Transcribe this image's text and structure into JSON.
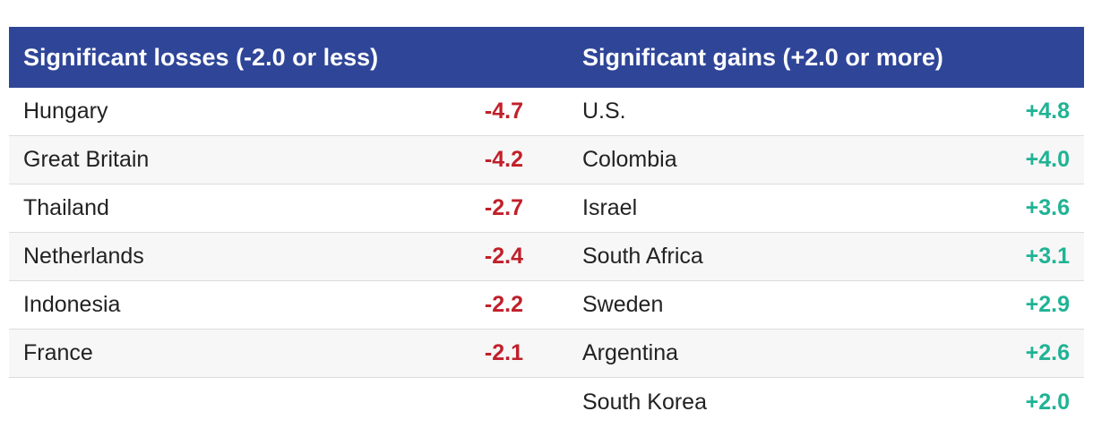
{
  "chart_data": {
    "type": "table",
    "columns": [
      "Significant losses (-2.0 or less)",
      "Significant gains (+2.0 or more)"
    ],
    "losses": [
      {
        "country": "Hungary",
        "value": "-4.7"
      },
      {
        "country": "Great Britain",
        "value": "-4.2"
      },
      {
        "country": "Thailand",
        "value": "-2.7"
      },
      {
        "country": "Netherlands",
        "value": "-2.4"
      },
      {
        "country": "Indonesia",
        "value": "-2.2"
      },
      {
        "country": "France",
        "value": "-2.1"
      }
    ],
    "gains": [
      {
        "country": "U.S.",
        "value": "+4.8"
      },
      {
        "country": "Colombia",
        "value": "+4.0"
      },
      {
        "country": "Israel",
        "value": "+3.6"
      },
      {
        "country": "South Africa",
        "value": "+3.1"
      },
      {
        "country": "Sweden",
        "value": "+2.9"
      },
      {
        "country": "Argentina",
        "value": "+2.6"
      },
      {
        "country": "South Korea",
        "value": "+2.0"
      }
    ],
    "colors": {
      "header": "#2f4598",
      "loss": "#c0202a",
      "gain": "#1fb394"
    }
  }
}
